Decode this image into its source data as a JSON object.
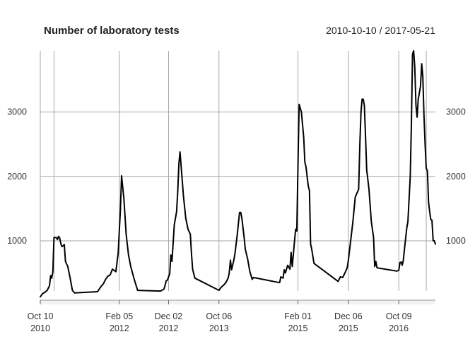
{
  "chart_data": {
    "type": "line",
    "title": "Number of laboratory tests",
    "date_range": "2010-10-10 / 2017-05-21",
    "ylim": [
      100,
      3950
    ],
    "y_ticks": [
      1000,
      2000,
      3000
    ],
    "y_tick_labels": [
      "1000",
      "2000",
      "3000"
    ],
    "x_ticks": [
      {
        "date": "2010-10-10",
        "line1": "Oct 10",
        "line2": "2010"
      },
      {
        "date": "2012-02-05",
        "line1": "Feb 05",
        "line2": "2012"
      },
      {
        "date": "2012-12-02",
        "line1": "Dec 02",
        "line2": "2012"
      },
      {
        "date": "2013-10-06",
        "line1": "Oct 06",
        "line2": "2013"
      },
      {
        "date": "2015-02-01",
        "line1": "Feb 01",
        "line2": "2015"
      },
      {
        "date": "2015-12-06",
        "line1": "Dec 06",
        "line2": "2015"
      },
      {
        "date": "2016-10-09",
        "line1": "Oct 09",
        "line2": "2016"
      }
    ],
    "series": [
      {
        "color": "#000000",
        "points": [
          [
            "2010-10-10",
            130
          ],
          [
            "2010-10-24",
            180
          ],
          [
            "2010-11-07",
            200
          ],
          [
            "2010-11-21",
            230
          ],
          [
            "2010-12-05",
            300
          ],
          [
            "2010-12-12",
            460
          ],
          [
            "2010-12-19",
            420
          ],
          [
            "2010-12-26",
            520
          ],
          [
            "2011-01-02",
            1050
          ],
          [
            "2011-01-16",
            1050
          ],
          [
            "2011-01-23",
            1020
          ],
          [
            "2011-01-30",
            1070
          ],
          [
            "2011-02-06",
            1040
          ],
          [
            "2011-02-13",
            950
          ],
          [
            "2011-02-20",
            910
          ],
          [
            "2011-03-06",
            940
          ],
          [
            "2011-03-13",
            680
          ],
          [
            "2011-03-27",
            600
          ],
          [
            "2011-04-10",
            430
          ],
          [
            "2011-04-24",
            230
          ],
          [
            "2011-05-08",
            190
          ],
          [
            "2011-09-25",
            210
          ],
          [
            "2011-10-16",
            290
          ],
          [
            "2011-10-30",
            330
          ],
          [
            "2011-11-13",
            400
          ],
          [
            "2011-11-27",
            450
          ],
          [
            "2011-12-11",
            470
          ],
          [
            "2011-12-25",
            560
          ],
          [
            "2012-01-15",
            520
          ],
          [
            "2012-01-29",
            810
          ],
          [
            "2012-02-12",
            1500
          ],
          [
            "2012-02-19",
            2010
          ],
          [
            "2012-03-04",
            1650
          ],
          [
            "2012-03-18",
            1100
          ],
          [
            "2012-04-01",
            780
          ],
          [
            "2012-04-15",
            600
          ],
          [
            "2012-05-06",
            400
          ],
          [
            "2012-05-27",
            230
          ],
          [
            "2012-10-14",
            220
          ],
          [
            "2012-11-04",
            250
          ],
          [
            "2012-11-11",
            310
          ],
          [
            "2012-11-18",
            380
          ],
          [
            "2012-11-25",
            390
          ],
          [
            "2012-12-09",
            490
          ],
          [
            "2012-12-16",
            780
          ],
          [
            "2012-12-23",
            680
          ],
          [
            "2013-01-06",
            1250
          ],
          [
            "2013-01-20",
            1450
          ],
          [
            "2013-01-27",
            1750
          ],
          [
            "2013-02-03",
            2200
          ],
          [
            "2013-02-10",
            2380
          ],
          [
            "2013-02-17",
            2150
          ],
          [
            "2013-03-03",
            1700
          ],
          [
            "2013-03-17",
            1350
          ],
          [
            "2013-03-31",
            1180
          ],
          [
            "2013-04-14",
            1100
          ],
          [
            "2013-04-21",
            800
          ],
          [
            "2013-04-28",
            560
          ],
          [
            "2013-05-12",
            420
          ],
          [
            "2013-10-06",
            230
          ],
          [
            "2013-10-20",
            280
          ],
          [
            "2013-11-03",
            310
          ],
          [
            "2013-11-17",
            350
          ],
          [
            "2013-12-01",
            420
          ],
          [
            "2013-12-08",
            500
          ],
          [
            "2013-12-15",
            700
          ],
          [
            "2013-12-22",
            550
          ],
          [
            "2014-01-05",
            700
          ],
          [
            "2014-01-12",
            800
          ],
          [
            "2014-01-26",
            1100
          ],
          [
            "2014-02-09",
            1440
          ],
          [
            "2014-02-16",
            1440
          ],
          [
            "2014-02-23",
            1350
          ],
          [
            "2014-03-09",
            1050
          ],
          [
            "2014-03-16",
            870
          ],
          [
            "2014-03-30",
            720
          ],
          [
            "2014-04-13",
            520
          ],
          [
            "2014-04-27",
            400
          ],
          [
            "2014-05-04",
            430
          ],
          [
            "2014-10-12",
            350
          ],
          [
            "2014-10-19",
            440
          ],
          [
            "2014-11-02",
            420
          ],
          [
            "2014-11-09",
            550
          ],
          [
            "2014-11-16",
            500
          ],
          [
            "2014-11-30",
            620
          ],
          [
            "2014-12-14",
            560
          ],
          [
            "2014-12-21",
            820
          ],
          [
            "2014-12-28",
            600
          ],
          [
            "2015-01-11",
            1000
          ],
          [
            "2015-01-18",
            1180
          ],
          [
            "2015-01-25",
            1150
          ],
          [
            "2015-02-01",
            2200
          ],
          [
            "2015-02-08",
            3120
          ],
          [
            "2015-02-22",
            3000
          ],
          [
            "2015-03-08",
            2600
          ],
          [
            "2015-03-15",
            2220
          ],
          [
            "2015-03-22",
            2150
          ],
          [
            "2015-04-05",
            1850
          ],
          [
            "2015-04-12",
            1780
          ],
          [
            "2015-04-19",
            950
          ],
          [
            "2015-04-26",
            870
          ],
          [
            "2015-05-10",
            650
          ],
          [
            "2015-10-04",
            370
          ],
          [
            "2015-10-18",
            440
          ],
          [
            "2015-11-01",
            430
          ],
          [
            "2015-11-15",
            500
          ],
          [
            "2015-11-29",
            580
          ],
          [
            "2015-12-06",
            700
          ],
          [
            "2015-12-20",
            1000
          ],
          [
            "2016-01-03",
            1300
          ],
          [
            "2016-01-17",
            1680
          ],
          [
            "2016-01-24",
            1720
          ],
          [
            "2016-02-07",
            1800
          ],
          [
            "2016-02-14",
            2500
          ],
          [
            "2016-02-21",
            3000
          ],
          [
            "2016-02-28",
            3200
          ],
          [
            "2016-03-06",
            3200
          ],
          [
            "2016-03-13",
            3100
          ],
          [
            "2016-03-20",
            2600
          ],
          [
            "2016-03-27",
            2100
          ],
          [
            "2016-04-10",
            1800
          ],
          [
            "2016-04-24",
            1300
          ],
          [
            "2016-05-08",
            1050
          ],
          [
            "2016-05-15",
            600
          ],
          [
            "2016-05-22",
            680
          ],
          [
            "2016-05-29",
            580
          ],
          [
            "2016-09-25",
            530
          ],
          [
            "2016-10-09",
            540
          ],
          [
            "2016-10-16",
            660
          ],
          [
            "2016-10-23",
            670
          ],
          [
            "2016-10-30",
            620
          ],
          [
            "2016-11-06",
            700
          ],
          [
            "2016-11-13",
            880
          ],
          [
            "2016-11-27",
            1200
          ],
          [
            "2016-12-04",
            1300
          ],
          [
            "2016-12-18",
            2000
          ],
          [
            "2016-12-25",
            2800
          ],
          [
            "2017-01-01",
            3900
          ],
          [
            "2017-01-08",
            3950
          ],
          [
            "2017-01-15",
            3700
          ],
          [
            "2017-01-22",
            3100
          ],
          [
            "2017-01-29",
            2920
          ],
          [
            "2017-02-05",
            3200
          ],
          [
            "2017-02-12",
            3300
          ],
          [
            "2017-02-19",
            3400
          ],
          [
            "2017-02-26",
            3750
          ],
          [
            "2017-03-05",
            3550
          ],
          [
            "2017-03-12",
            2950
          ],
          [
            "2017-03-19",
            2500
          ],
          [
            "2017-03-26",
            2130
          ],
          [
            "2017-04-02",
            2080
          ],
          [
            "2017-04-09",
            1600
          ],
          [
            "2017-04-16",
            1450
          ],
          [
            "2017-04-23",
            1330
          ],
          [
            "2017-04-30",
            1320
          ],
          [
            "2017-05-07",
            1000
          ],
          [
            "2017-05-14",
            1000
          ],
          [
            "2017-05-21",
            950
          ]
        ]
      }
    ],
    "grid": true,
    "y_axis_sides": "both",
    "ticks_position": "bottom"
  }
}
